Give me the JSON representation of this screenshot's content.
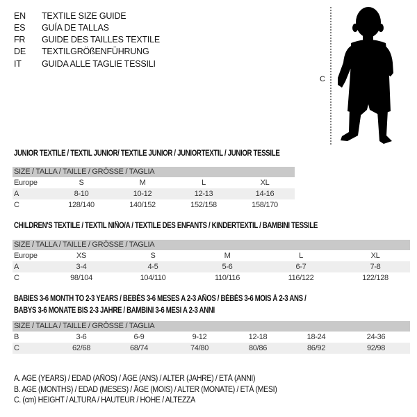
{
  "languages": [
    {
      "code": "EN",
      "text": "TEXTILE SIZE GUIDE"
    },
    {
      "code": "ES",
      "text": "GUÍA DE TALLAS"
    },
    {
      "code": "FR",
      "text": "GUIDE DES TAILLES TEXTILE"
    },
    {
      "code": "DE",
      "text": "TEXTILGRÖßENFÜHRUNG"
    },
    {
      "code": "IT",
      "text": "GUIDA ALLE TAGLIE TESSILI"
    }
  ],
  "figure": {
    "measure_label": "C",
    "icon": "child-silhouette-icon"
  },
  "colors": {
    "header_bg": "#c9c9c9",
    "shaded_row": "#eeeeee"
  },
  "tables": [
    {
      "title": "JUNIOR TEXTILE / TEXTIL JUNIOR/ TEXTILE JUNIOR / JUNIORTEXTIL / JUNIOR TESSILE",
      "header": "SIZE / TALLA / TAILLE / GRÖSSE / TAGLIA",
      "rows": [
        {
          "label": "Europe",
          "cells": [
            "S",
            "M",
            "L",
            "XL"
          ]
        },
        {
          "label": "A",
          "cells": [
            "8-10",
            "10-12",
            "12-13",
            "14-16"
          ]
        },
        {
          "label": "C",
          "cells": [
            "128/140",
            "140/152",
            "152/158",
            "158/170"
          ]
        }
      ]
    },
    {
      "title": "CHILDREN'S TEXTILE / TEXTIL NIÑO/A / TEXTILE DES ENFANTS / KINDERTEXTIL / BAMBINI TESSILE",
      "header": "SIZE / TALLA / TAILLE / GRÖSSE / TAGLIA",
      "rows": [
        {
          "label": "Europe",
          "cells": [
            "XS",
            "S",
            "M",
            "L",
            "XL"
          ]
        },
        {
          "label": "A",
          "cells": [
            "3-4",
            "4-5",
            "5-6",
            "6-7",
            "7-8"
          ]
        },
        {
          "label": "C",
          "cells": [
            "98/104",
            "104/110",
            "110/116",
            "116/122",
            "122/128"
          ]
        }
      ]
    },
    {
      "title": "BABIES 3-6 MONTH TO 2-3 YEARS / BEBÉS 3-6 MESES A 2-3 AÑOS / BÉBÉS 3-6 MOIS À 2-3 ANS /",
      "title2": "BABYS 3-6 MONATE BIS 2-3 JAHRE / BAMBINI 3-6 MESI A 2-3 ANNI",
      "header": "SIZE / TALLA / TAILLE / GRÖSSE / TAGLIA",
      "rows": [
        {
          "label": "B",
          "cells": [
            "3-6",
            "6-9",
            "9-12",
            "12-18",
            "18-24",
            "24-36"
          ]
        },
        {
          "label": "C",
          "cells": [
            "62/68",
            "68/74",
            "74/80",
            "80/86",
            "86/92",
            "92/98"
          ]
        }
      ]
    }
  ],
  "legend": [
    "A. AGE (YEARS) / EDAD (AÑOS) / ÂGE (ANS) / ALTER (JAHRE) / ETÀ (ANNI)",
    "B. AGE (MONTHS) / EDAD (MESES) / ÂGE (MOIS) / ALTER (MONATE) / ETÀ (MESI)",
    "C. (cm) HEIGHT / ALTURA / HAUTEUR / HÖHE / ALTEZZA"
  ]
}
